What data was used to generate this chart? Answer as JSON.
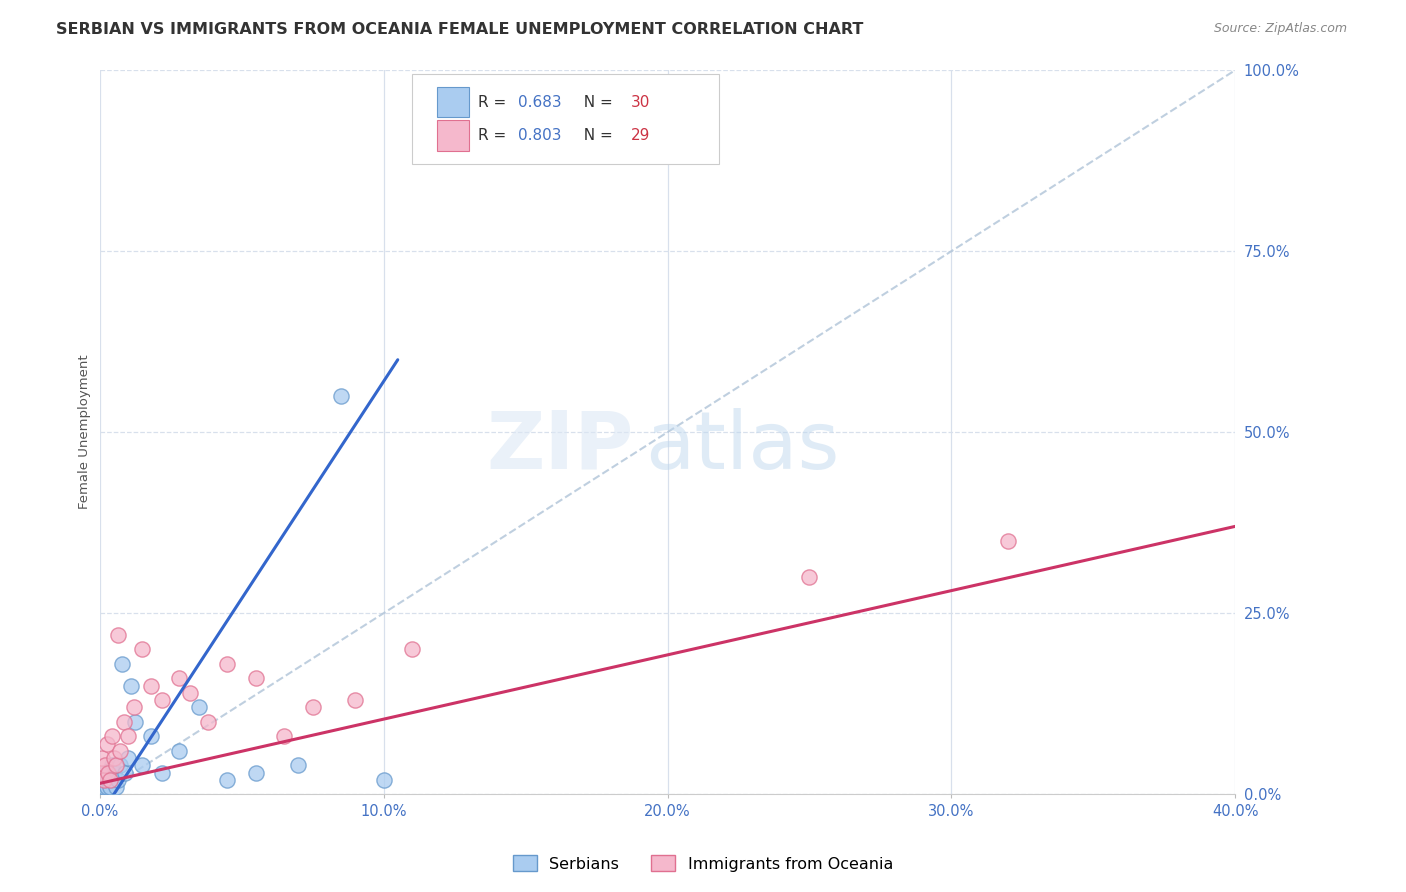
{
  "title": "SERBIAN VS IMMIGRANTS FROM OCEANIA FEMALE UNEMPLOYMENT CORRELATION CHART",
  "source": "Source: ZipAtlas.com",
  "ylabel_label": "Female Unemployment",
  "xlim": [
    0,
    40
  ],
  "ylim": [
    -2,
    105
  ],
  "plot_ylim": [
    0,
    100
  ],
  "series": [
    {
      "name": "Serbians",
      "R": 0.683,
      "N": 30,
      "color": "#aaccf0",
      "edge_color": "#6699cc",
      "line_color": "#3366cc",
      "x": [
        0.05,
        0.1,
        0.15,
        0.18,
        0.22,
        0.25,
        0.28,
        0.32,
        0.38,
        0.42,
        0.48,
        0.52,
        0.58,
        0.65,
        0.72,
        0.8,
        0.9,
        1.0,
        1.1,
        1.25,
        1.5,
        1.8,
        2.2,
        2.8,
        3.5,
        4.5,
        5.5,
        7.0,
        8.5,
        10.0
      ],
      "y": [
        1,
        2,
        1,
        3,
        2,
        1,
        2,
        3,
        1,
        4,
        2,
        3,
        1,
        2,
        4,
        18,
        3,
        5,
        15,
        10,
        4,
        8,
        3,
        6,
        12,
        2,
        3,
        4,
        55,
        2
      ],
      "trend_x": [
        0.0,
        10.5
      ],
      "trend_y": [
        -3,
        60
      ]
    },
    {
      "name": "Immigrants from Oceania",
      "R": 0.803,
      "N": 29,
      "color": "#f5b8cc",
      "edge_color": "#e07090",
      "line_color": "#cc3366",
      "x": [
        0.05,
        0.1,
        0.15,
        0.2,
        0.25,
        0.3,
        0.35,
        0.42,
        0.5,
        0.58,
        0.65,
        0.72,
        0.85,
        1.0,
        1.2,
        1.5,
        1.8,
        2.2,
        2.8,
        3.2,
        3.8,
        4.5,
        5.5,
        6.5,
        7.5,
        9.0,
        11.0,
        25.0,
        32.0
      ],
      "y": [
        3,
        5,
        2,
        4,
        7,
        3,
        2,
        8,
        5,
        4,
        22,
        6,
        10,
        8,
        12,
        20,
        15,
        13,
        16,
        14,
        10,
        18,
        16,
        8,
        12,
        13,
        20,
        30,
        35
      ],
      "trend_x": [
        0.0,
        40.0
      ],
      "trend_y": [
        1.5,
        37.0
      ]
    }
  ],
  "diagonal_color": "#b0c4d8",
  "grid_color": "#d8e0ec",
  "background_color": "#ffffff",
  "title_fontsize": 11.5,
  "source_fontsize": 9,
  "axis_label_fontsize": 9.5,
  "tick_fontsize": 10.5,
  "legend_fontsize": 12,
  "right_tick_color": "#4472c4",
  "xlabel_color": "#4472c4",
  "marker_size": 120
}
